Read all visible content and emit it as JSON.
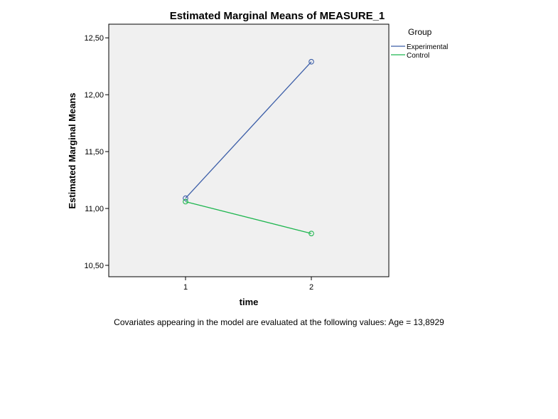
{
  "chart_data": {
    "type": "line",
    "title": "Estimated Marginal Means of MEASURE_1",
    "xlabel": "time",
    "ylabel": "Estimated Marginal Means",
    "categories": [
      "1",
      "2"
    ],
    "ylim": [
      10.4,
      12.62
    ],
    "yticks": [
      10.5,
      11.0,
      11.5,
      12.0,
      12.5
    ],
    "ytick_labels": [
      "10,50",
      "11,00",
      "11,50",
      "12,00",
      "12,50"
    ],
    "grid": false,
    "legend": {
      "title": "Group",
      "position": "top-right",
      "outside": true
    },
    "series": [
      {
        "name": "Experimental",
        "values": [
          11.09,
          12.29
        ],
        "color": "#3c5ea8"
      },
      {
        "name": "Control",
        "values": [
          11.06,
          10.78
        ],
        "color": "#1fb650"
      }
    ],
    "plot_background": "#f0f0f0",
    "footnote": "Covariates appearing in the model are evaluated at the following values: Age = 13,8929"
  }
}
